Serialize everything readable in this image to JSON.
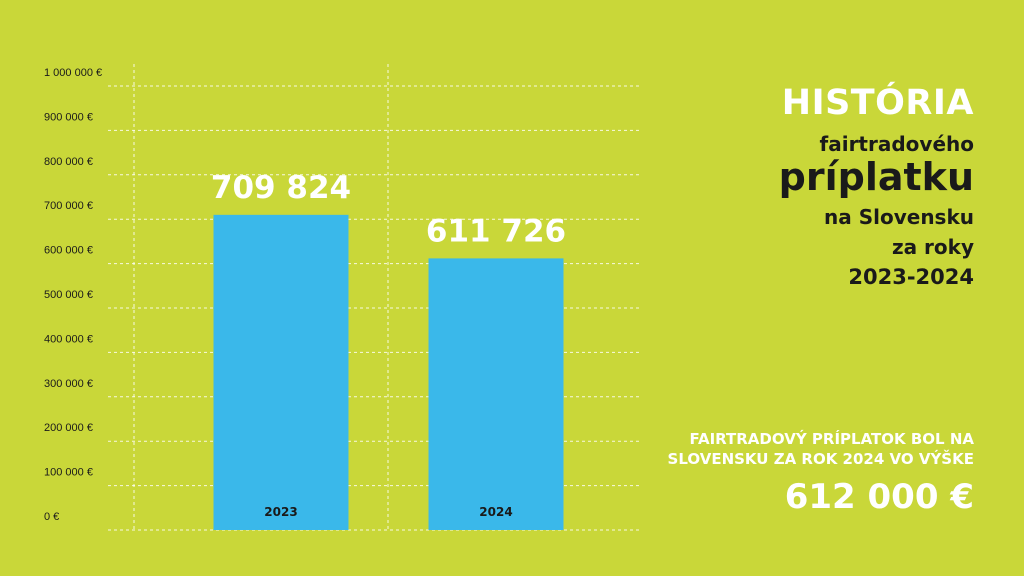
{
  "chart_data": {
    "type": "bar",
    "categories": [
      "2023",
      "2024"
    ],
    "values": [
      709824,
      611726
    ],
    "value_labels": [
      "709 824",
      "611 726"
    ],
    "ylim": [
      0,
      1000000
    ],
    "yticks": [
      "0 €",
      "100 000 €",
      "200 000 €",
      "300 000 €",
      "400 000 €",
      "500 000 €",
      "600 000 €",
      "700 000 €",
      "800 000 €",
      "900 000 €",
      "1 000 000 €"
    ],
    "grid": true,
    "bar_color": "#3ab8ea"
  },
  "title": {
    "line1": "HISTÓRIA",
    "line2": "fairtradového",
    "line3": "príplatku",
    "line4": "na Slovensku",
    "line5": "za roky",
    "line6": "2023-2024"
  },
  "note": {
    "text": "FAIRTRADOVÝ PRÍPLATOK BOL NA SLOVENSKU ZA ROK 2024 VO VÝŠKE",
    "amount": "612 000 €"
  },
  "colors": {
    "background": "#c9d739",
    "accent_text": "#ffffff",
    "dark_text": "#1a1a1a"
  }
}
